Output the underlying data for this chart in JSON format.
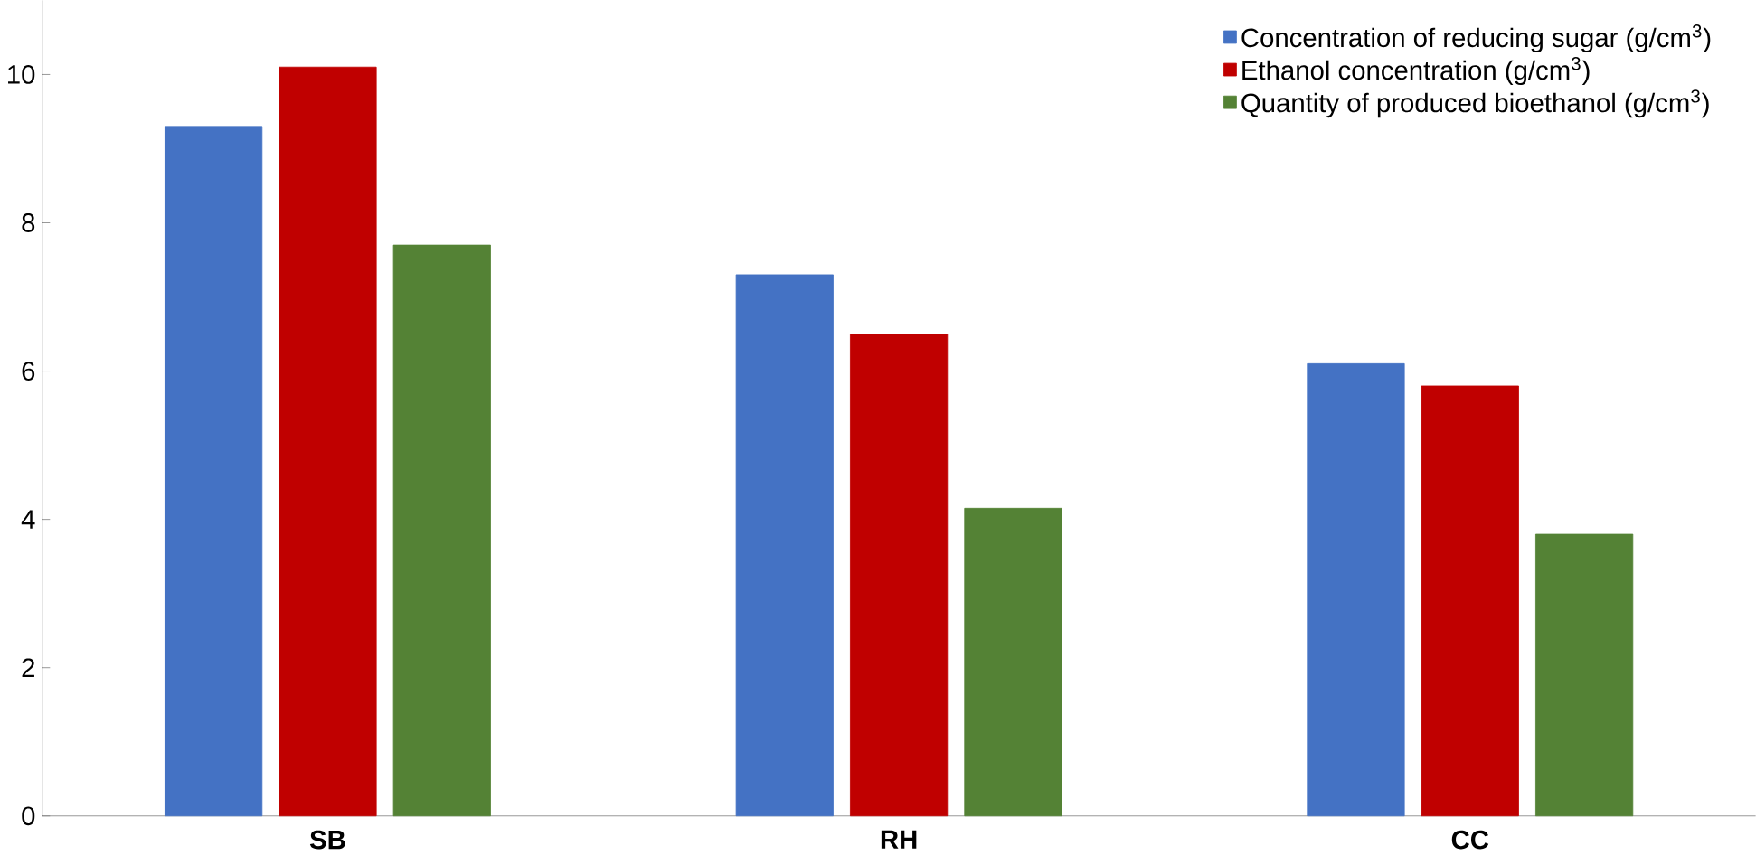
{
  "chart_data": {
    "type": "bar",
    "categories": [
      "SB",
      "RH",
      "CC"
    ],
    "series": [
      {
        "name": "Concentration of reducing sugar (g/cm$^{3}$)",
        "color": "#4472c4",
        "values": [
          9.3,
          7.3,
          6.1
        ]
      },
      {
        "name": "Ethanol concentration (g/cm$^{3}$)",
        "color": "#c00000",
        "values": [
          10.1,
          6.5,
          5.8
        ]
      },
      {
        "name": "Quantity of produced bioethanol (g/cm$^{3}$)",
        "color": "#548235",
        "values": [
          7.7,
          4.15,
          3.8
        ]
      }
    ],
    "ylim": [
      0,
      11
    ],
    "yticks": [
      0,
      2,
      4,
      6,
      8,
      10
    ],
    "grid": false,
    "legend": "top right"
  }
}
